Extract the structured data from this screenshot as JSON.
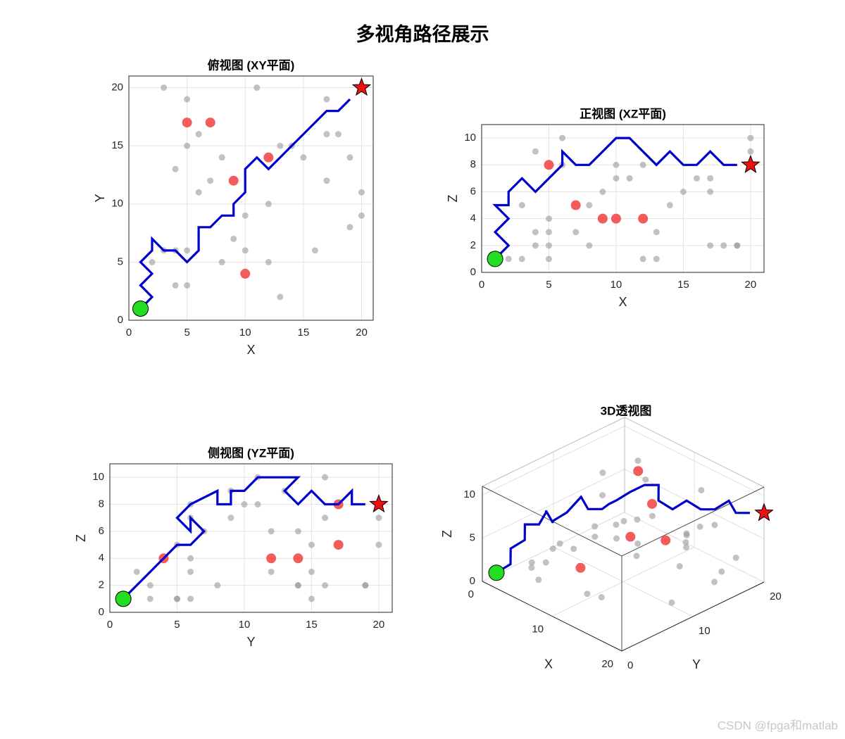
{
  "title": "多视角路径展示",
  "watermark": "CSDN @fpga和matlab",
  "chart_data": [
    {
      "type": "line",
      "title": "俯视图 (XY平面)",
      "xlabel": "X",
      "ylabel": "Y",
      "xlim": [
        0,
        21
      ],
      "ylim": [
        0,
        21
      ],
      "xticks": [
        0,
        5,
        10,
        15,
        20
      ],
      "yticks": [
        0,
        5,
        10,
        15,
        20
      ],
      "grid": true,
      "series": [
        {
          "color": "#999999",
          "marker": "o",
          "x": [
            3,
            5,
            11,
            5,
            4,
            6,
            7,
            8,
            6,
            13,
            15,
            17,
            17,
            18,
            17,
            19,
            19,
            20,
            20,
            4,
            2,
            5,
            4,
            5,
            8,
            9,
            10,
            12,
            12,
            13,
            16,
            10,
            3,
            14
          ],
          "values": [
            20,
            19,
            20,
            15,
            13,
            16,
            12,
            14,
            11,
            15,
            14,
            19,
            16,
            16,
            12,
            14,
            8,
            11,
            9,
            6,
            5,
            6,
            3,
            3,
            5,
            7,
            6,
            5,
            10,
            2,
            6,
            9,
            6,
            15
          ]
        },
        {
          "color": "#f24040",
          "marker": "o",
          "x": [
            5,
            7,
            12,
            9,
            10
          ],
          "values": [
            17,
            17,
            14,
            12,
            4
          ]
        },
        {
          "color": "#0000cc",
          "marker": "-",
          "x": [
            1,
            2,
            1,
            2,
            1,
            2,
            2,
            3,
            4,
            5,
            6,
            6,
            7,
            8,
            9,
            9,
            10,
            10,
            11,
            12,
            13,
            14,
            15,
            16,
            17,
            18,
            19
          ],
          "values": [
            1,
            2,
            3,
            4,
            5,
            6,
            7,
            6,
            6,
            5,
            6,
            8,
            8,
            9,
            9,
            10,
            11,
            13,
            14,
            13,
            14,
            15,
            16,
            17,
            18,
            18,
            19
          ]
        },
        {
          "color": "#22dd22",
          "marker": "o",
          "x": [
            1
          ],
          "values": [
            1
          ]
        },
        {
          "color": "#ee1111",
          "marker": "p",
          "x": [
            20
          ],
          "values": [
            20
          ]
        }
      ]
    },
    {
      "type": "line",
      "title": "正视图 (XZ平面)",
      "xlabel": "X",
      "ylabel": "Z",
      "xlim": [
        0,
        21
      ],
      "ylim": [
        0,
        11
      ],
      "xticks": [
        0,
        5,
        10,
        15,
        20
      ],
      "yticks": [
        0,
        2,
        4,
        6,
        8,
        10
      ],
      "grid": true,
      "series": [
        {
          "color": "#999999",
          "marker": "o",
          "x": [
            3,
            5,
            11,
            5,
            4,
            6,
            7,
            8,
            6,
            13,
            15,
            17,
            17,
            18,
            17,
            19,
            19,
            20,
            20,
            4,
            2,
            5,
            4,
            5,
            8,
            9,
            10,
            12,
            12,
            13,
            16,
            10,
            3,
            14
          ],
          "values": [
            5,
            2,
            7,
            3,
            9,
            10,
            3,
            2,
            8,
            1,
            6,
            2,
            7,
            2,
            6,
            2,
            2,
            10,
            9,
            3,
            1,
            4,
            2,
            1,
            5,
            6,
            8,
            1,
            8,
            3,
            7,
            7,
            1,
            5
          ]
        },
        {
          "color": "#f24040",
          "marker": "o",
          "x": [
            5,
            7,
            12,
            9,
            10
          ],
          "values": [
            8,
            5,
            4,
            4,
            4
          ]
        },
        {
          "color": "#0000cc",
          "marker": "-",
          "x": [
            1,
            2,
            1,
            2,
            1,
            2,
            2,
            3,
            4,
            5,
            6,
            6,
            7,
            8,
            9,
            9,
            10,
            10,
            11,
            12,
            13,
            14,
            15,
            16,
            17,
            18,
            19
          ],
          "values": [
            1,
            2,
            3,
            4,
            5,
            5,
            6,
            7,
            6,
            7,
            8,
            9,
            8,
            8,
            9,
            9,
            10,
            10,
            10,
            9,
            8,
            9,
            8,
            8,
            9,
            8,
            8
          ]
        },
        {
          "color": "#22dd22",
          "marker": "o",
          "x": [
            1
          ],
          "values": [
            1
          ]
        },
        {
          "color": "#ee1111",
          "marker": "p",
          "x": [
            20
          ],
          "values": [
            8
          ]
        }
      ]
    },
    {
      "type": "line",
      "title": "侧视图 (YZ平面)",
      "xlabel": "Y",
      "ylabel": "Z",
      "xlim": [
        0,
        21
      ],
      "ylim": [
        0,
        11
      ],
      "xticks": [
        0,
        5,
        10,
        15,
        20
      ],
      "yticks": [
        0,
        2,
        4,
        6,
        8,
        10
      ],
      "grid": true,
      "series": [
        {
          "color": "#999999",
          "marker": "o",
          "x": [
            20,
            19,
            20,
            15,
            13,
            16,
            12,
            14,
            11,
            15,
            14,
            19,
            16,
            16,
            12,
            14,
            8,
            11,
            9,
            6,
            5,
            6,
            3,
            3,
            5,
            7,
            6,
            5,
            10,
            2,
            6,
            9,
            6,
            15
          ],
          "values": [
            5,
            2,
            7,
            3,
            9,
            10,
            3,
            2,
            8,
            1,
            6,
            2,
            7,
            2,
            6,
            2,
            2,
            10,
            9,
            3,
            1,
            4,
            2,
            1,
            5,
            6,
            8,
            1,
            8,
            3,
            7,
            7,
            1,
            5
          ]
        },
        {
          "color": "#f24040",
          "marker": "o",
          "x": [
            17,
            17,
            14,
            12,
            4
          ],
          "values": [
            8,
            5,
            4,
            4,
            4
          ]
        },
        {
          "color": "#0000cc",
          "marker": "-",
          "x": [
            1,
            2,
            3,
            4,
            5,
            6,
            7,
            6,
            6,
            5,
            6,
            8,
            8,
            9,
            9,
            10,
            11,
            13,
            14,
            13,
            14,
            15,
            16,
            17,
            18,
            18,
            19
          ],
          "values": [
            1,
            2,
            3,
            4,
            5,
            5,
            6,
            7,
            6,
            7,
            8,
            9,
            8,
            8,
            9,
            9,
            10,
            10,
            10,
            9,
            8,
            9,
            8,
            8,
            9,
            8,
            8
          ]
        },
        {
          "color": "#22dd22",
          "marker": "o",
          "x": [
            1
          ],
          "values": [
            1
          ]
        },
        {
          "color": "#ee1111",
          "marker": "p",
          "x": [
            20
          ],
          "values": [
            8
          ]
        }
      ]
    },
    {
      "type": "line3d",
      "title": "3D透视图",
      "xlabel": "X",
      "ylabel": "Y",
      "zlabel": "Z",
      "xlim": [
        0,
        20
      ],
      "ylim": [
        0,
        20
      ],
      "zlim": [
        0,
        11
      ],
      "xticks": [
        0,
        10,
        20
      ],
      "yticks": [
        0,
        10,
        20
      ],
      "zticks": [
        0,
        5,
        10
      ],
      "grid": true,
      "series": [
        {
          "color": "#999999",
          "marker": "o",
          "x": [
            3,
            5,
            11,
            5,
            4,
            6,
            7,
            8,
            6,
            13,
            15,
            17,
            17,
            18,
            17,
            19,
            19,
            20,
            20,
            4,
            2,
            5,
            4,
            5,
            8,
            9,
            10,
            12,
            12,
            13,
            16,
            10,
            3,
            14
          ],
          "y": [
            20,
            19,
            20,
            15,
            13,
            16,
            12,
            14,
            11,
            15,
            14,
            19,
            16,
            16,
            12,
            14,
            8,
            11,
            9,
            6,
            5,
            6,
            3,
            3,
            5,
            7,
            6,
            5,
            10,
            2,
            6,
            9,
            6,
            15
          ],
          "z": [
            5,
            2,
            7,
            3,
            9,
            10,
            3,
            2,
            8,
            1,
            6,
            2,
            7,
            2,
            6,
            2,
            2,
            10,
            9,
            3,
            1,
            4,
            2,
            1,
            5,
            6,
            8,
            1,
            8,
            3,
            7,
            7,
            1,
            5
          ]
        },
        {
          "color": "#f24040",
          "marker": "o",
          "x": [
            5,
            7,
            12,
            9,
            10
          ],
          "y": [
            17,
            17,
            14,
            12,
            4
          ],
          "z": [
            8,
            5,
            4,
            4,
            4
          ]
        },
        {
          "color": "#0000cc",
          "marker": "-",
          "x": [
            1,
            2,
            1,
            2,
            1,
            2,
            2,
            3,
            4,
            5,
            6,
            6,
            7,
            8,
            9,
            9,
            10,
            10,
            11,
            12,
            13,
            14,
            15,
            16,
            17,
            18,
            19
          ],
          "y": [
            1,
            2,
            3,
            4,
            5,
            6,
            7,
            6,
            6,
            5,
            6,
            8,
            8,
            9,
            9,
            10,
            11,
            13,
            14,
            13,
            14,
            15,
            16,
            17,
            18,
            18,
            19
          ],
          "z": [
            1,
            2,
            3,
            4,
            5,
            5,
            6,
            7,
            6,
            7,
            8,
            9,
            8,
            8,
            9,
            9,
            10,
            10,
            10,
            9,
            8,
            9,
            8,
            8,
            9,
            8,
            8
          ]
        },
        {
          "color": "#22dd22",
          "marker": "o",
          "x": [
            1
          ],
          "y": [
            1
          ],
          "z": [
            1
          ]
        },
        {
          "color": "#ee1111",
          "marker": "p",
          "x": [
            20
          ],
          "y": [
            20
          ],
          "z": [
            8
          ]
        }
      ]
    }
  ]
}
